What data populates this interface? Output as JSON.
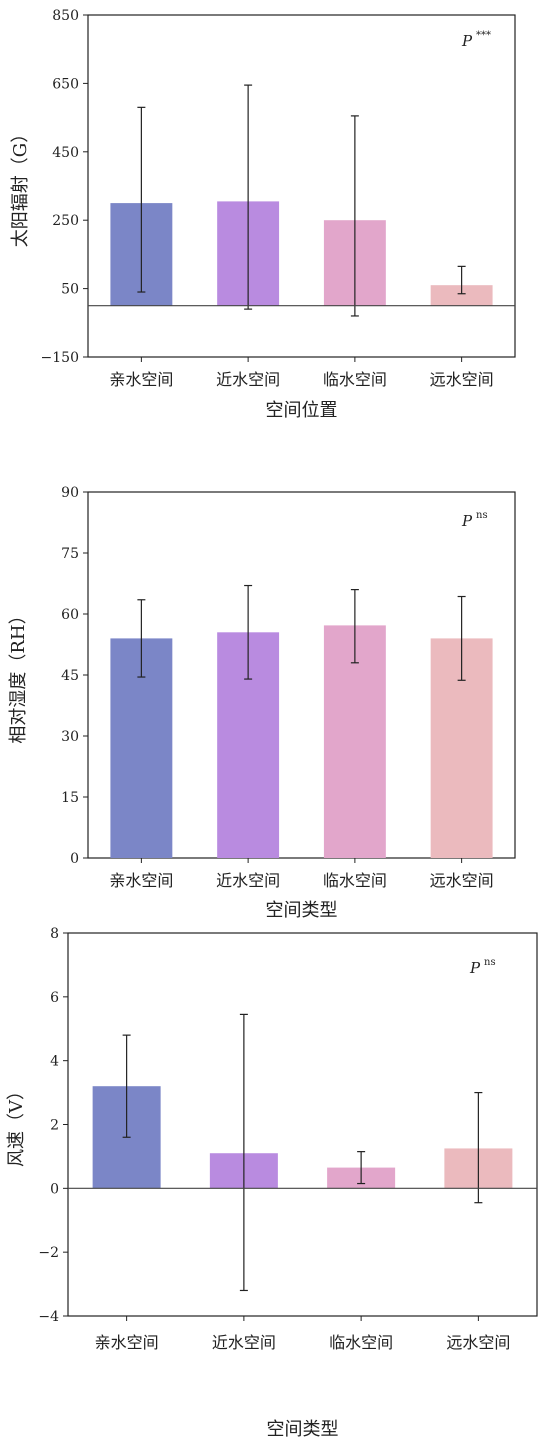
{
  "chart_data": [
    {
      "type": "bar",
      "categories": [
        "亲水空间",
        "近水空间",
        "临水空间",
        "远水空间"
      ],
      "values": [
        300,
        305,
        250,
        60
      ],
      "errors": [
        [
          40,
          580
        ],
        [
          -10,
          645
        ],
        [
          -30,
          555
        ],
        [
          35,
          115
        ]
      ],
      "colors": [
        "#7b86c7",
        "#b98be0",
        "#e2a6cb",
        "#ebbabe"
      ],
      "xlabel": "空间位置",
      "ylabel": "太阳辐射（G）",
      "ylim": [
        -150,
        850
      ],
      "yticks": [
        "850",
        "650",
        "450",
        "250",
        "50",
        "−150"
      ],
      "ytick_values": [
        850,
        650,
        450,
        250,
        50,
        -150
      ],
      "p_label": "P",
      "p_sup": "***",
      "zero_line": true
    },
    {
      "type": "bar",
      "categories": [
        "亲水空间",
        "近水空间",
        "临水空间",
        "远水空间"
      ],
      "values": [
        54,
        55.5,
        57.2,
        54
      ],
      "errors": [
        [
          44.5,
          63.5
        ],
        [
          44,
          67
        ],
        [
          48,
          66
        ],
        [
          43.7,
          64.3
        ]
      ],
      "colors": [
        "#7b86c7",
        "#b98be0",
        "#e2a6cb",
        "#ebbabe"
      ],
      "xlabel": "空间类型",
      "ylabel": "相对湿度（RH）",
      "ylim": [
        0,
        90
      ],
      "yticks": [
        "90",
        "75",
        "60",
        "45",
        "30",
        "15",
        "0"
      ],
      "ytick_values": [
        90,
        75,
        60,
        45,
        30,
        15,
        0
      ],
      "p_label": "P",
      "p_sup": "ns",
      "zero_line": false
    },
    {
      "type": "bar",
      "categories": [
        "亲水空间",
        "近水空间",
        "临水空间",
        "远水空间"
      ],
      "values": [
        3.2,
        1.1,
        0.65,
        1.25
      ],
      "errors": [
        [
          1.6,
          4.8
        ],
        [
          -3.2,
          5.45
        ],
        [
          0.15,
          1.15
        ],
        [
          -0.45,
          3.0
        ]
      ],
      "colors": [
        "#7b86c7",
        "#b98be0",
        "#e2a6cb",
        "#ebbabe"
      ],
      "xlabel": "空间类型",
      "ylabel": "风速（V）",
      "ylim": [
        -4,
        8
      ],
      "yticks": [
        "8",
        "6",
        "4",
        "2",
        "0",
        "−2",
        "−4"
      ],
      "ytick_values": [
        8,
        6,
        4,
        2,
        0,
        -2,
        -4
      ],
      "p_label": "P",
      "p_sup": "ns",
      "zero_line": true
    }
  ]
}
